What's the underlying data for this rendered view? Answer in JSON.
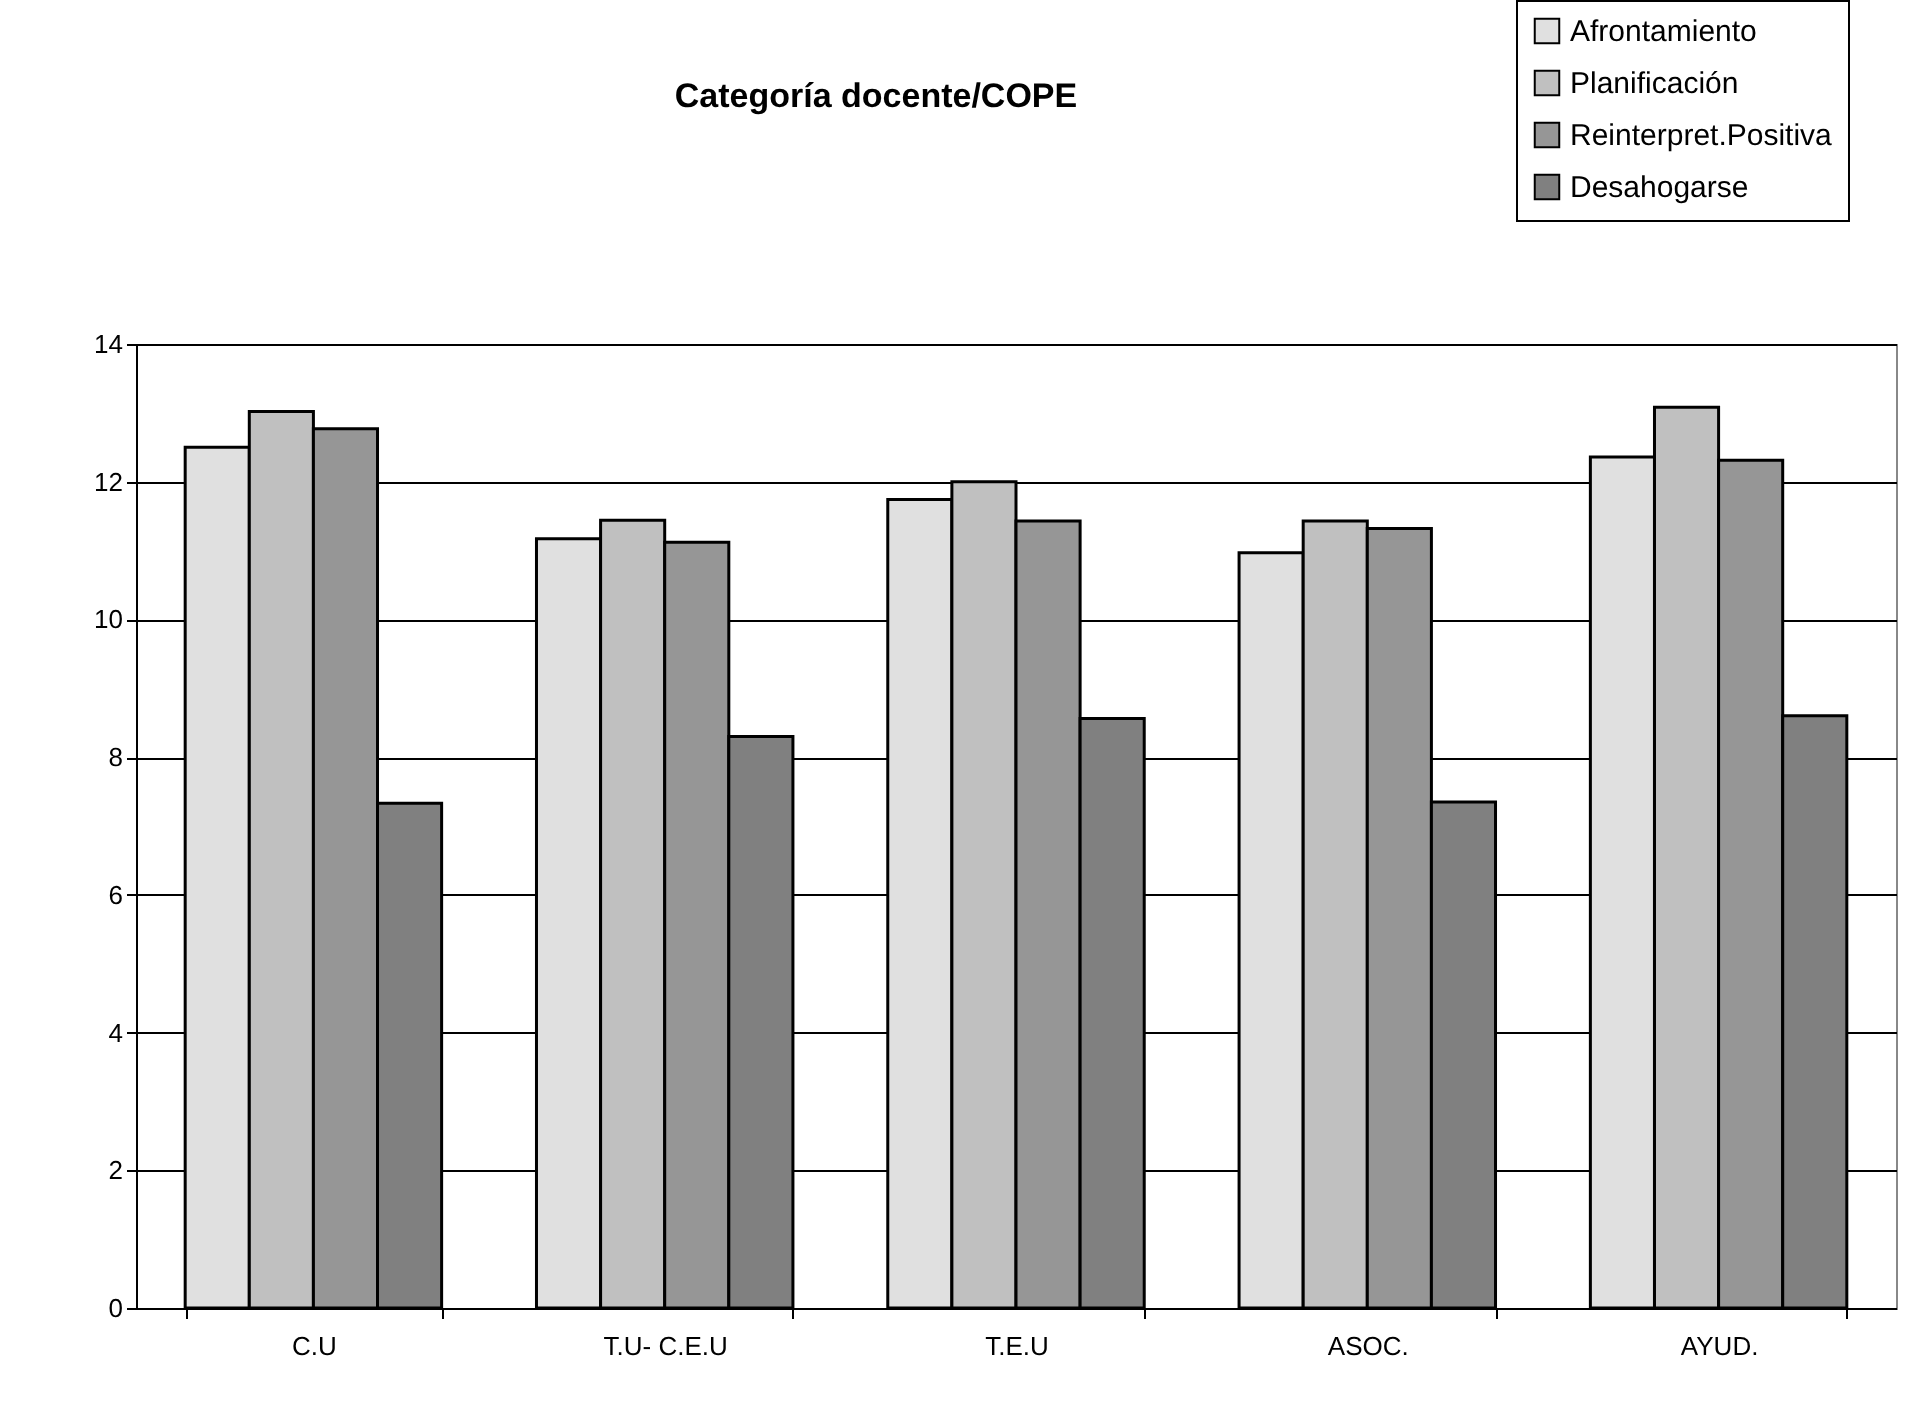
{
  "chart_data": {
    "type": "bar",
    "title": "Categoría docente/COPE",
    "categories": [
      "C.U",
      "T.U- C.E.U",
      "T.E.U",
      "ASOC.",
      "AYUD."
    ],
    "series": [
      {
        "name": "Afrontamiento",
        "color": "#e0e0e0",
        "values": [
          12.5,
          11.17,
          11.74,
          10.97,
          12.36
        ]
      },
      {
        "name": "Planificación",
        "color": "#c0c0c0",
        "values": [
          13.02,
          11.44,
          12.0,
          11.43,
          13.08
        ]
      },
      {
        "name": "Reinterpret.Positiva",
        "color": "#969696",
        "values": [
          12.77,
          11.12,
          11.43,
          11.32,
          12.31
        ]
      },
      {
        "name": "Desahogarse",
        "color": "#808080",
        "values": [
          7.33,
          8.3,
          8.56,
          7.35,
          8.6
        ]
      }
    ],
    "ylim": [
      0,
      14
    ],
    "yticks": [
      0,
      2,
      4,
      6,
      8,
      10,
      12,
      14
    ],
    "grid": "y",
    "legend": "top right"
  }
}
